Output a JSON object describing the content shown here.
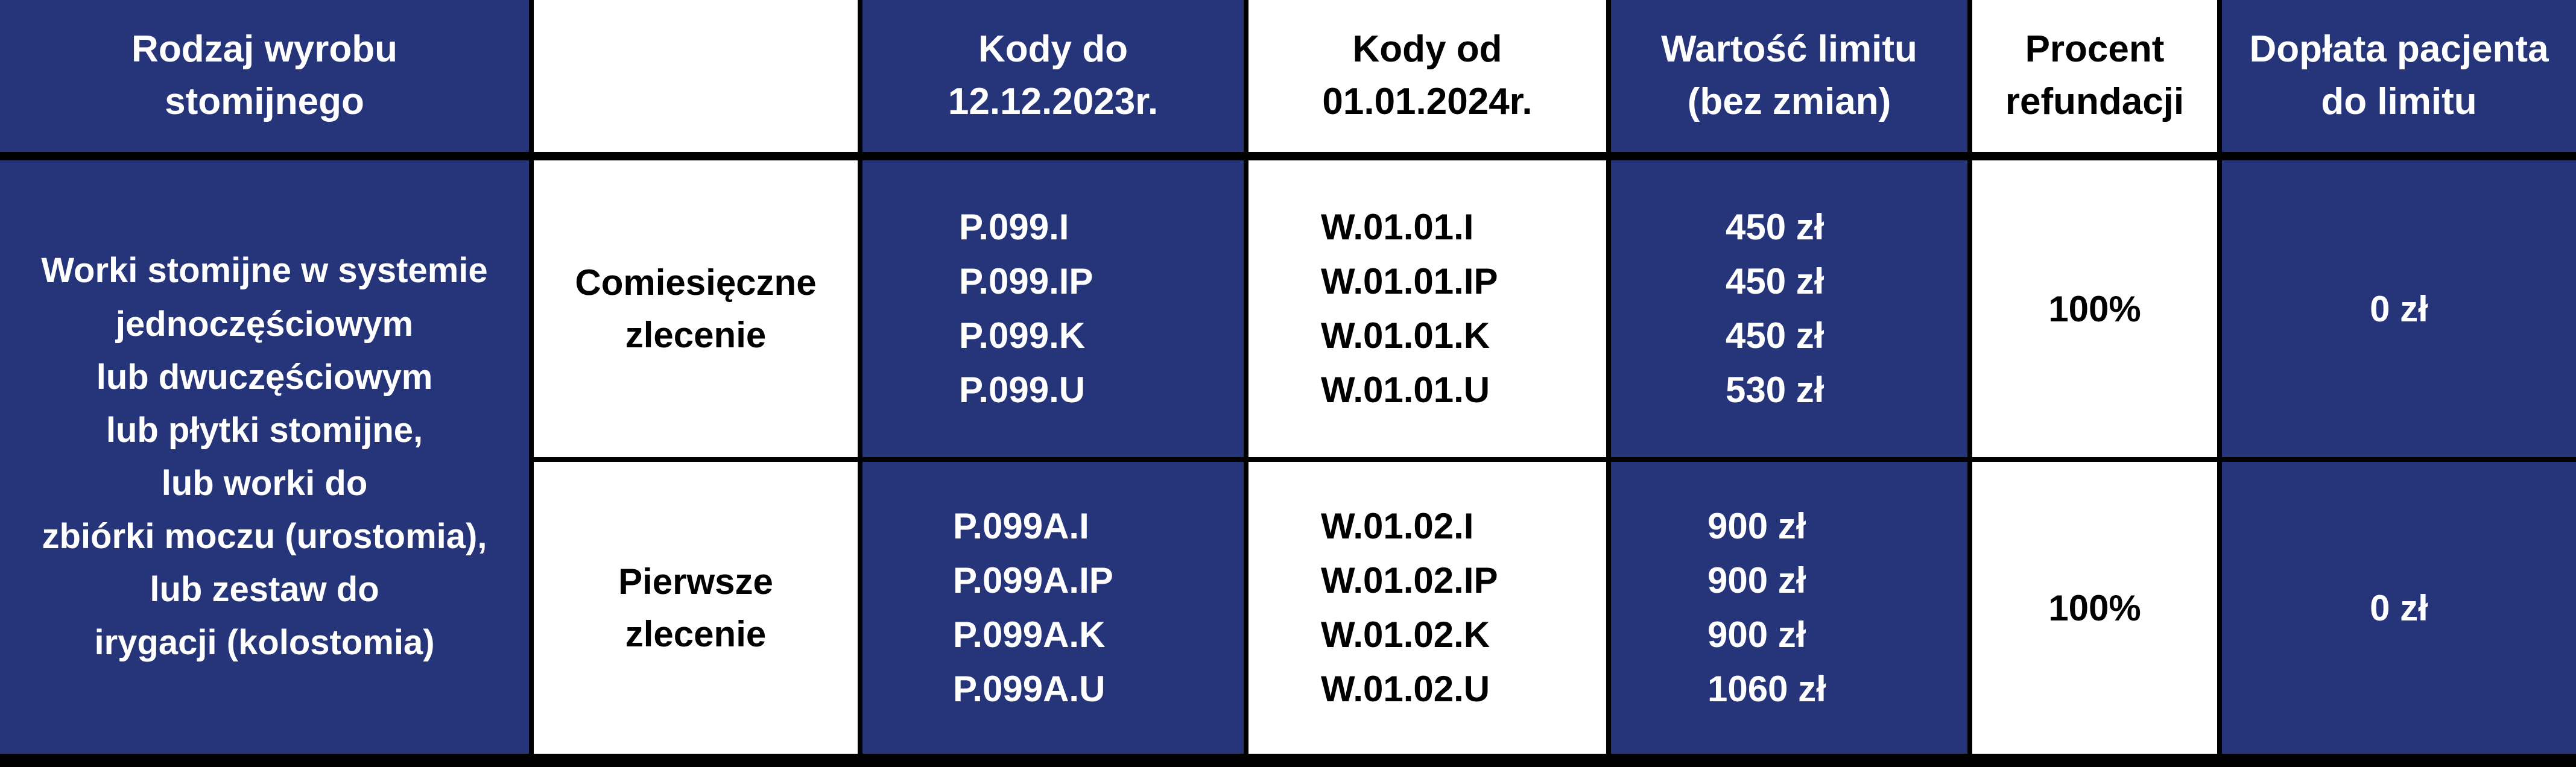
{
  "colors": {
    "header_blue": "#263479",
    "white": "#ffffff",
    "border": "#000000"
  },
  "headers": [
    "Rodzaj wyrobu stomijnego",
    "",
    "Kody do 12.12.2023r.",
    "Kody od 01.01.2024r.",
    "Wartość limitu (bez zmian)",
    "Procent refundacji",
    "Dopłata pacjenta do limitu"
  ],
  "product_type": [
    "Worki stomijne w systemie",
    "jednoczęściowym",
    "lub dwuczęściowym",
    "lub płytki stomijne,",
    "lub worki do",
    "zbiórki moczu (urostomia),",
    "lub zestaw do",
    "irygacji (kolostomia)"
  ],
  "rows": [
    {
      "order": "Comiesięczne zlecenie",
      "old_codes": [
        "P.099.I",
        "P.099.IP",
        "P.099.K",
        "P.099.U"
      ],
      "new_codes": [
        "W.01.01.I",
        "W.01.01.IP",
        "W.01.01.K",
        "W.01.01.U"
      ],
      "limits": [
        "450 zł",
        "450 zł",
        "450 zł",
        "530 zł"
      ],
      "refund": "100%",
      "copay": "0 zł"
    },
    {
      "order": "Pierwsze zlecenie",
      "old_codes": [
        "P.099A.I",
        "P.099A.IP",
        "P.099A.K",
        "P.099A.U"
      ],
      "new_codes": [
        "W.01.02.I",
        "W.01.02.IP",
        "W.01.02.K",
        "W.01.02.U"
      ],
      "limits": [
        "900 zł",
        "900 zł",
        "900 zł",
        "1060 zł"
      ],
      "refund": "100%",
      "copay": "0 zł"
    }
  ]
}
